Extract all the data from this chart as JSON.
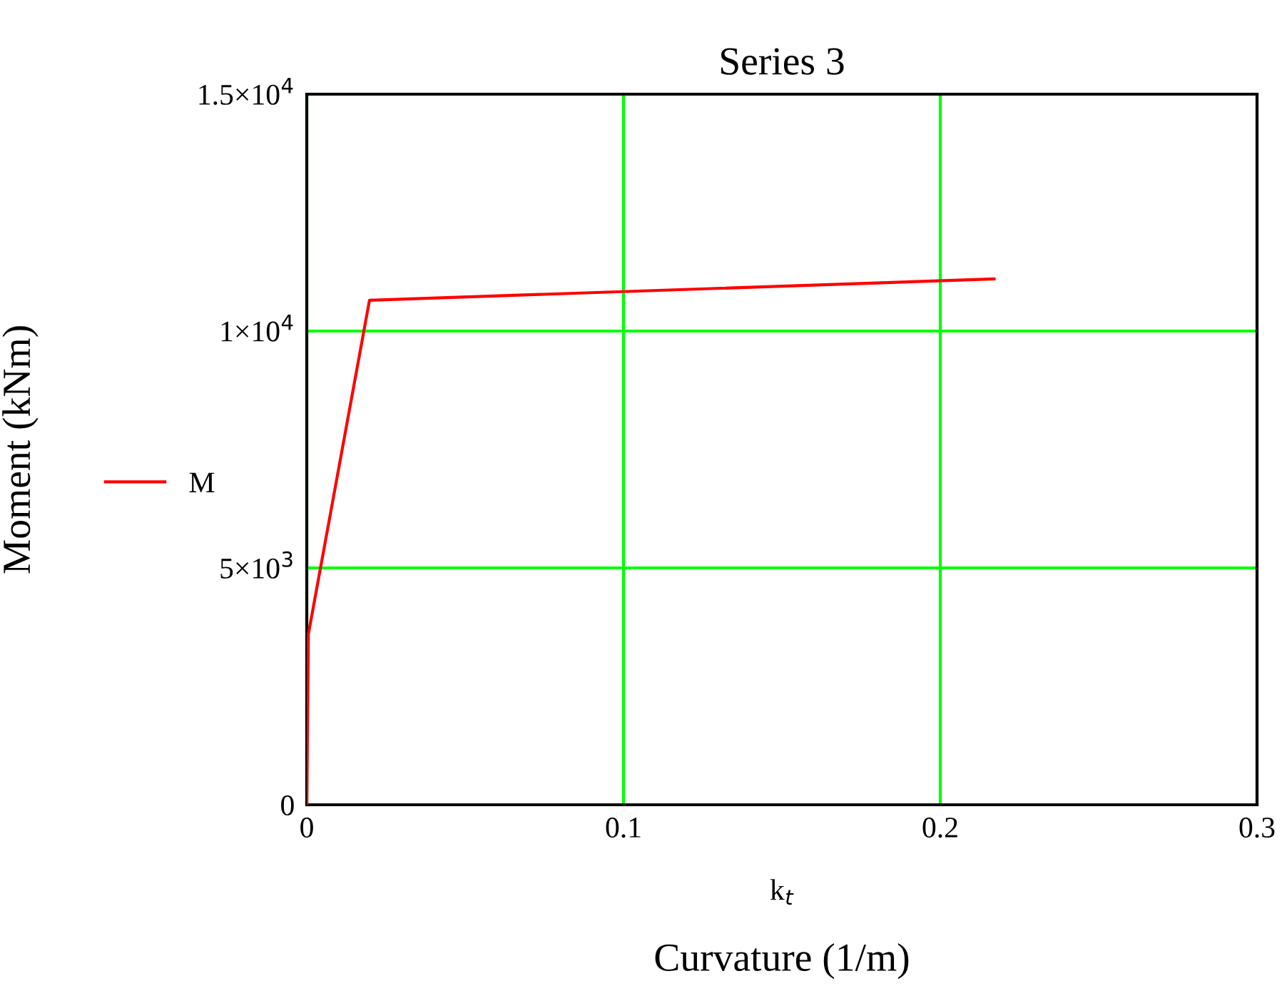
{
  "chart_data": {
    "type": "line",
    "title": "Series 3",
    "xlabel": "k$_{t}$",
    "ylabel": "Moment (kNm)",
    "annotations": [
      "Curvature (1/m)"
    ],
    "x": [
      0,
      0.0005,
      0.0198,
      0.217
    ],
    "series": [
      {
        "name": "M",
        "color": "#ff0000",
        "values": [
          0,
          3600,
          10650,
          11100
        ]
      }
    ],
    "xlim": [
      0,
      0.3
    ],
    "xticks": [
      0,
      0.1,
      0.2,
      0.3
    ],
    "ylim": [
      0,
      15000
    ],
    "yticks": [
      0,
      {
        "value": 5000,
        "label": "5×10$^{3}$"
      },
      {
        "value": 10000,
        "label": "1×10$^{4}$"
      },
      {
        "value": 15000,
        "label": "1.5×10$^{4}$"
      }
    ],
    "grid": true,
    "legend": "left",
    "marker": "none",
    "line_style": "solid"
  }
}
